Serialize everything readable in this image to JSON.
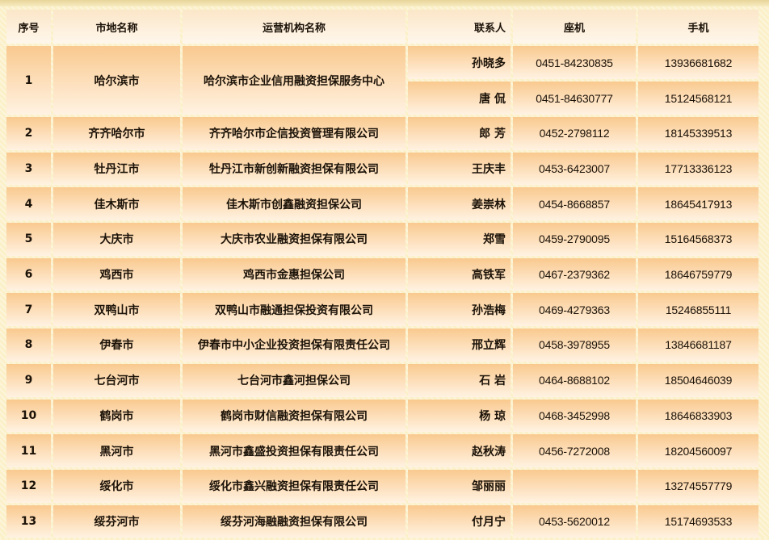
{
  "headers": [
    "序号",
    "市地名称",
    "运营机构名称",
    "联系人",
    "座机",
    "手机"
  ],
  "first_row": {
    "no": "1",
    "city": "哈尔滨市",
    "org": "哈尔滨市企业信用融资担保服务中心",
    "contacts": [
      {
        "name": "孙晓多",
        "phone": "0451-84230835",
        "mobile": "13936681682"
      },
      {
        "name": "唐 侃",
        "phone": "0451-84630777",
        "mobile": "15124568121"
      }
    ]
  },
  "rows": [
    {
      "no": "2",
      "city": "齐齐哈尔市",
      "org": "齐齐哈尔市企信投资管理有限公司",
      "name": "郎 芳",
      "phone": "0452-2798112",
      "mobile": "18145339513"
    },
    {
      "no": "3",
      "city": "牡丹江市",
      "org": "牡丹江市新创新融资担保有限公司",
      "name": "王庆丰",
      "phone": "0453-6423007",
      "mobile": "17713336123"
    },
    {
      "no": "4",
      "city": "佳木斯市",
      "org": "佳木斯市创鑫融资担保公司",
      "name": "姜崇林",
      "phone": "0454-8668857",
      "mobile": "18645417913"
    },
    {
      "no": "5",
      "city": "大庆市",
      "org": "大庆市农业融资担保有限公司",
      "name": "郑雪",
      "phone": "0459-2790095",
      "mobile": "15164568373"
    },
    {
      "no": "6",
      "city": "鸡西市",
      "org": "鸡西市金惠担保公司",
      "name": "高铁军",
      "phone": "0467-2379362",
      "mobile": "18646759779"
    },
    {
      "no": "7",
      "city": "双鸭山市",
      "org": "双鸭山市融通担保投资有限公司",
      "name": "孙浩梅",
      "phone": "0469-4279363",
      "mobile": "15246855111"
    },
    {
      "no": "8",
      "city": "伊春市",
      "org": "伊春市中小企业投资担保有限责任公司",
      "name": "邢立辉",
      "phone": "0458-3978955",
      "mobile": "13846681187"
    },
    {
      "no": "9",
      "city": "七台河市",
      "org": "七台河市鑫河担保公司",
      "name": "石 岩",
      "phone": "0464-8688102",
      "mobile": "18504646039"
    },
    {
      "no": "10",
      "city": "鹤岗市",
      "org": "鹤岗市财信融资担保有限公司",
      "name": "杨 琼",
      "phone": "0468-3452998",
      "mobile": "18646833903"
    },
    {
      "no": "11",
      "city": "黑河市",
      "org": "黑河市鑫盛投资担保有限责任公司",
      "name": "赵秋涛",
      "phone": "0456-7272008",
      "mobile": "18204560097"
    },
    {
      "no": "12",
      "city": "绥化市",
      "org": "绥化市鑫兴融资担保有限责任公司",
      "name": "邹丽丽",
      "phone": "",
      "mobile": "13274557779"
    },
    {
      "no": "13",
      "city": "绥芬河市",
      "org": "绥芬河海融融资担保有限公司",
      "name": "付月宁",
      "phone": "0453-5620012",
      "mobile": "15174693533"
    }
  ]
}
